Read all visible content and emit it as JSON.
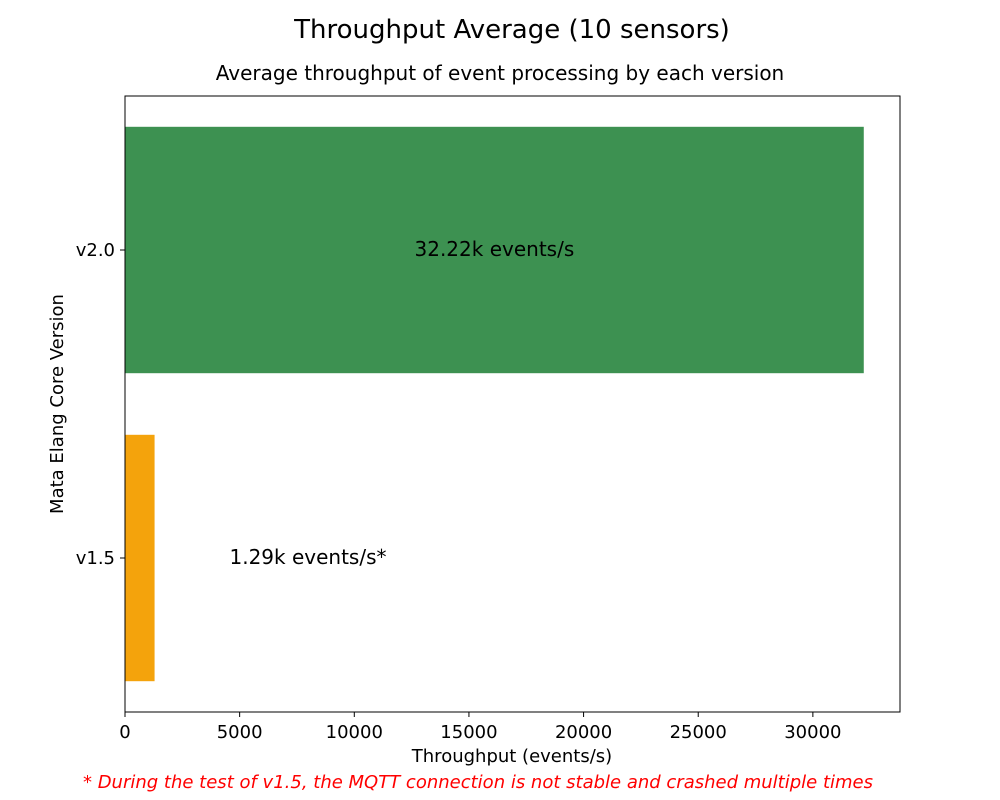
{
  "chart_data": {
    "type": "bar",
    "orientation": "horizontal",
    "title": "Throughput Average (10 sensors)",
    "subtitle": "Average throughput of event processing by each version",
    "xlabel": "Throughput (events/s)",
    "ylabel": "Mata Elang Core Version",
    "xlim": [
      0,
      33800
    ],
    "xticks": [
      0,
      5000,
      10000,
      15000,
      20000,
      25000,
      30000
    ],
    "categories": [
      "v1.5",
      "v2.0"
    ],
    "values": [
      1290,
      32220
    ],
    "bar_colors": [
      "#f4a30c",
      "#3d9151"
    ],
    "data_labels": [
      "1.29k events/s*",
      "32.22k events/s"
    ],
    "grid": false,
    "legend": "none"
  },
  "footnote": {
    "text": "* During the test of v1.5, the MQTT connection is not stable and crashed multiple times",
    "color": "#ff0000"
  }
}
